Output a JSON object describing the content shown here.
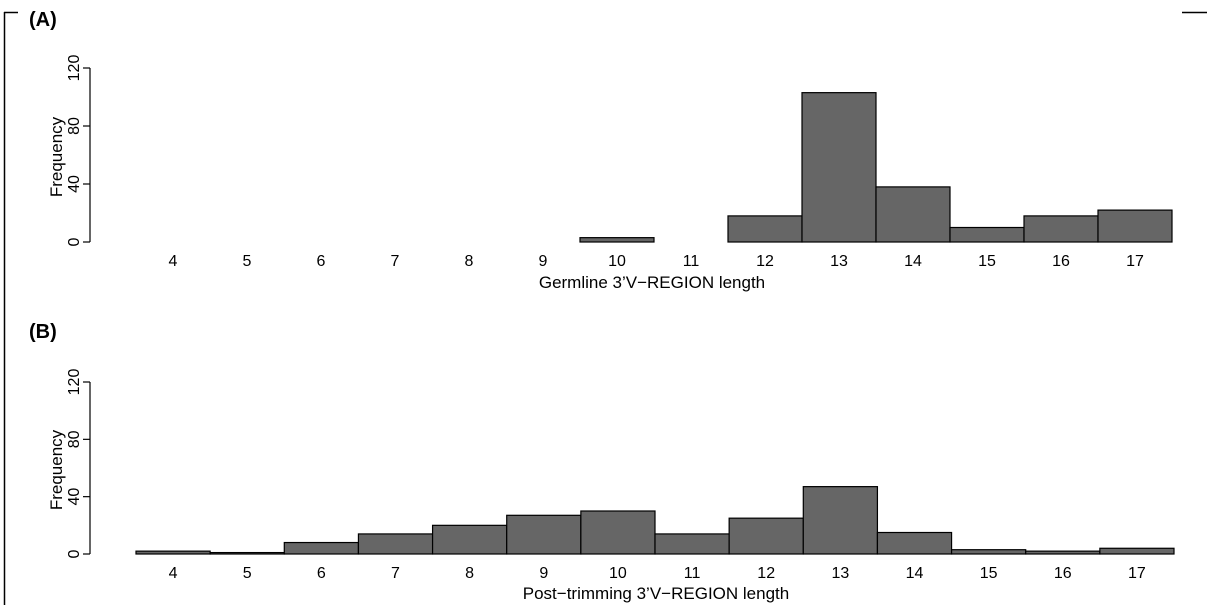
{
  "chart_data": [
    {
      "type": "bar",
      "panel_label": "(A)",
      "xlabel": "Germline 3’V−REGION length",
      "ylabel": "Frequency",
      "categories": [
        "4",
        "5",
        "6",
        "7",
        "8",
        "9",
        "10",
        "11",
        "12",
        "13",
        "14",
        "15",
        "16",
        "17"
      ],
      "values": [
        0,
        0,
        0,
        0,
        0,
        0,
        3,
        0,
        18,
        103,
        38,
        10,
        18,
        22
      ],
      "ylim": [
        0,
        120
      ],
      "yticks": [
        0,
        40,
        80,
        120
      ],
      "ytick_labels": [
        "0",
        "40",
        "80",
        "120"
      ],
      "bar_color": "#666666",
      "grid": false
    },
    {
      "type": "bar",
      "panel_label": "(B)",
      "xlabel": "Post−trimming 3’V−REGION length",
      "ylabel": "Frequency",
      "categories": [
        "4",
        "5",
        "6",
        "7",
        "8",
        "9",
        "10",
        "11",
        "12",
        "13",
        "14",
        "15",
        "16",
        "17"
      ],
      "values": [
        2,
        1,
        8,
        14,
        20,
        27,
        30,
        14,
        25,
        47,
        15,
        3,
        2,
        4
      ],
      "ylim": [
        0,
        120
      ],
      "yticks": [
        0,
        40,
        80,
        120
      ],
      "ytick_labels": [
        "0",
        "40",
        "80",
        "120"
      ],
      "bar_color": "#666666",
      "grid": false
    }
  ]
}
